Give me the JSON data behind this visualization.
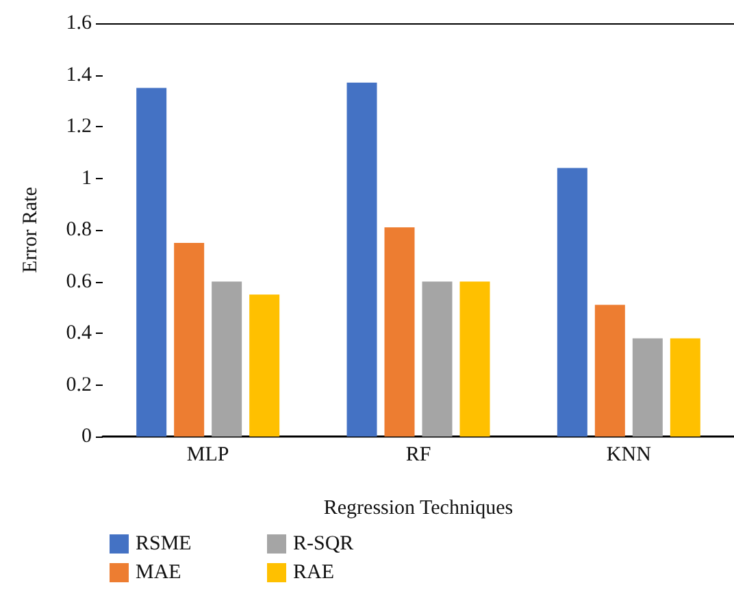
{
  "chart_data": {
    "type": "bar",
    "xlabel": "Regression Techniques",
    "ylabel": "Error Rate",
    "categories": [
      "MLP",
      "RF",
      "KNN"
    ],
    "series": [
      {
        "name": "RSME",
        "color": "#4472c4",
        "values": [
          1.35,
          1.37,
          1.04
        ]
      },
      {
        "name": "MAE",
        "color": "#ed7d31",
        "values": [
          0.75,
          0.81,
          0.51
        ]
      },
      {
        "name": "R-SQR",
        "color": "#a5a5a5",
        "values": [
          0.6,
          0.6,
          0.38
        ]
      },
      {
        "name": "RAE",
        "color": "#ffc000",
        "values": [
          0.55,
          0.6,
          0.38
        ]
      }
    ],
    "ylim": [
      0,
      1.6
    ],
    "yticks": [
      0,
      0.2,
      0.4,
      0.6,
      0.8,
      1,
      1.2,
      1.4,
      1.6
    ],
    "grid": false,
    "legend": "bottom"
  }
}
